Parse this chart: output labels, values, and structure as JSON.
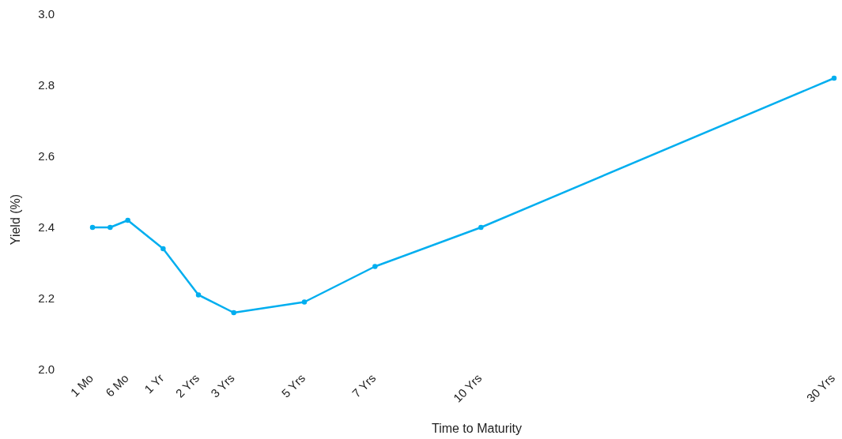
{
  "chart_data": {
    "type": "line",
    "xlabel": "Time to Maturity",
    "ylabel": "Yield (%)",
    "categories": [
      "1 Mo",
      null,
      "6 Mo",
      null,
      "1 Yr",
      null,
      "2 Yrs",
      null,
      "3 Yrs",
      null,
      null,
      null,
      "5 Yrs",
      null,
      null,
      null,
      "7 Yrs",
      null,
      null,
      null,
      null,
      null,
      "10 Yrs",
      null,
      null,
      null,
      null,
      null,
      null,
      null,
      null,
      null,
      null,
      null,
      null,
      null,
      null,
      null,
      null,
      null,
      null,
      null,
      "30 Yrs"
    ],
    "series": [
      {
        "color": "#00aeef",
        "values": [
          2.4,
          2.4,
          2.42,
          null,
          2.34,
          null,
          2.21,
          null,
          2.16,
          null,
          null,
          null,
          2.19,
          null,
          null,
          null,
          2.29,
          null,
          null,
          null,
          null,
          null,
          2.4,
          null,
          null,
          null,
          null,
          null,
          null,
          null,
          null,
          null,
          null,
          null,
          null,
          null,
          null,
          null,
          null,
          null,
          null,
          null,
          2.82
        ]
      }
    ],
    "ylim": [
      2.0,
      3.0
    ],
    "yticks": [
      {
        "value": 2.0,
        "label": "2.0"
      },
      {
        "value": 2.2,
        "label": "2.2"
      },
      {
        "value": 2.4,
        "label": "2.4"
      },
      {
        "value": 2.6,
        "label": "2.6"
      },
      {
        "value": 2.8,
        "label": "2.8"
      },
      {
        "value": 3.0,
        "label": "3.0"
      }
    ],
    "legend": false,
    "marker": "circle",
    "line_style": "solid"
  }
}
